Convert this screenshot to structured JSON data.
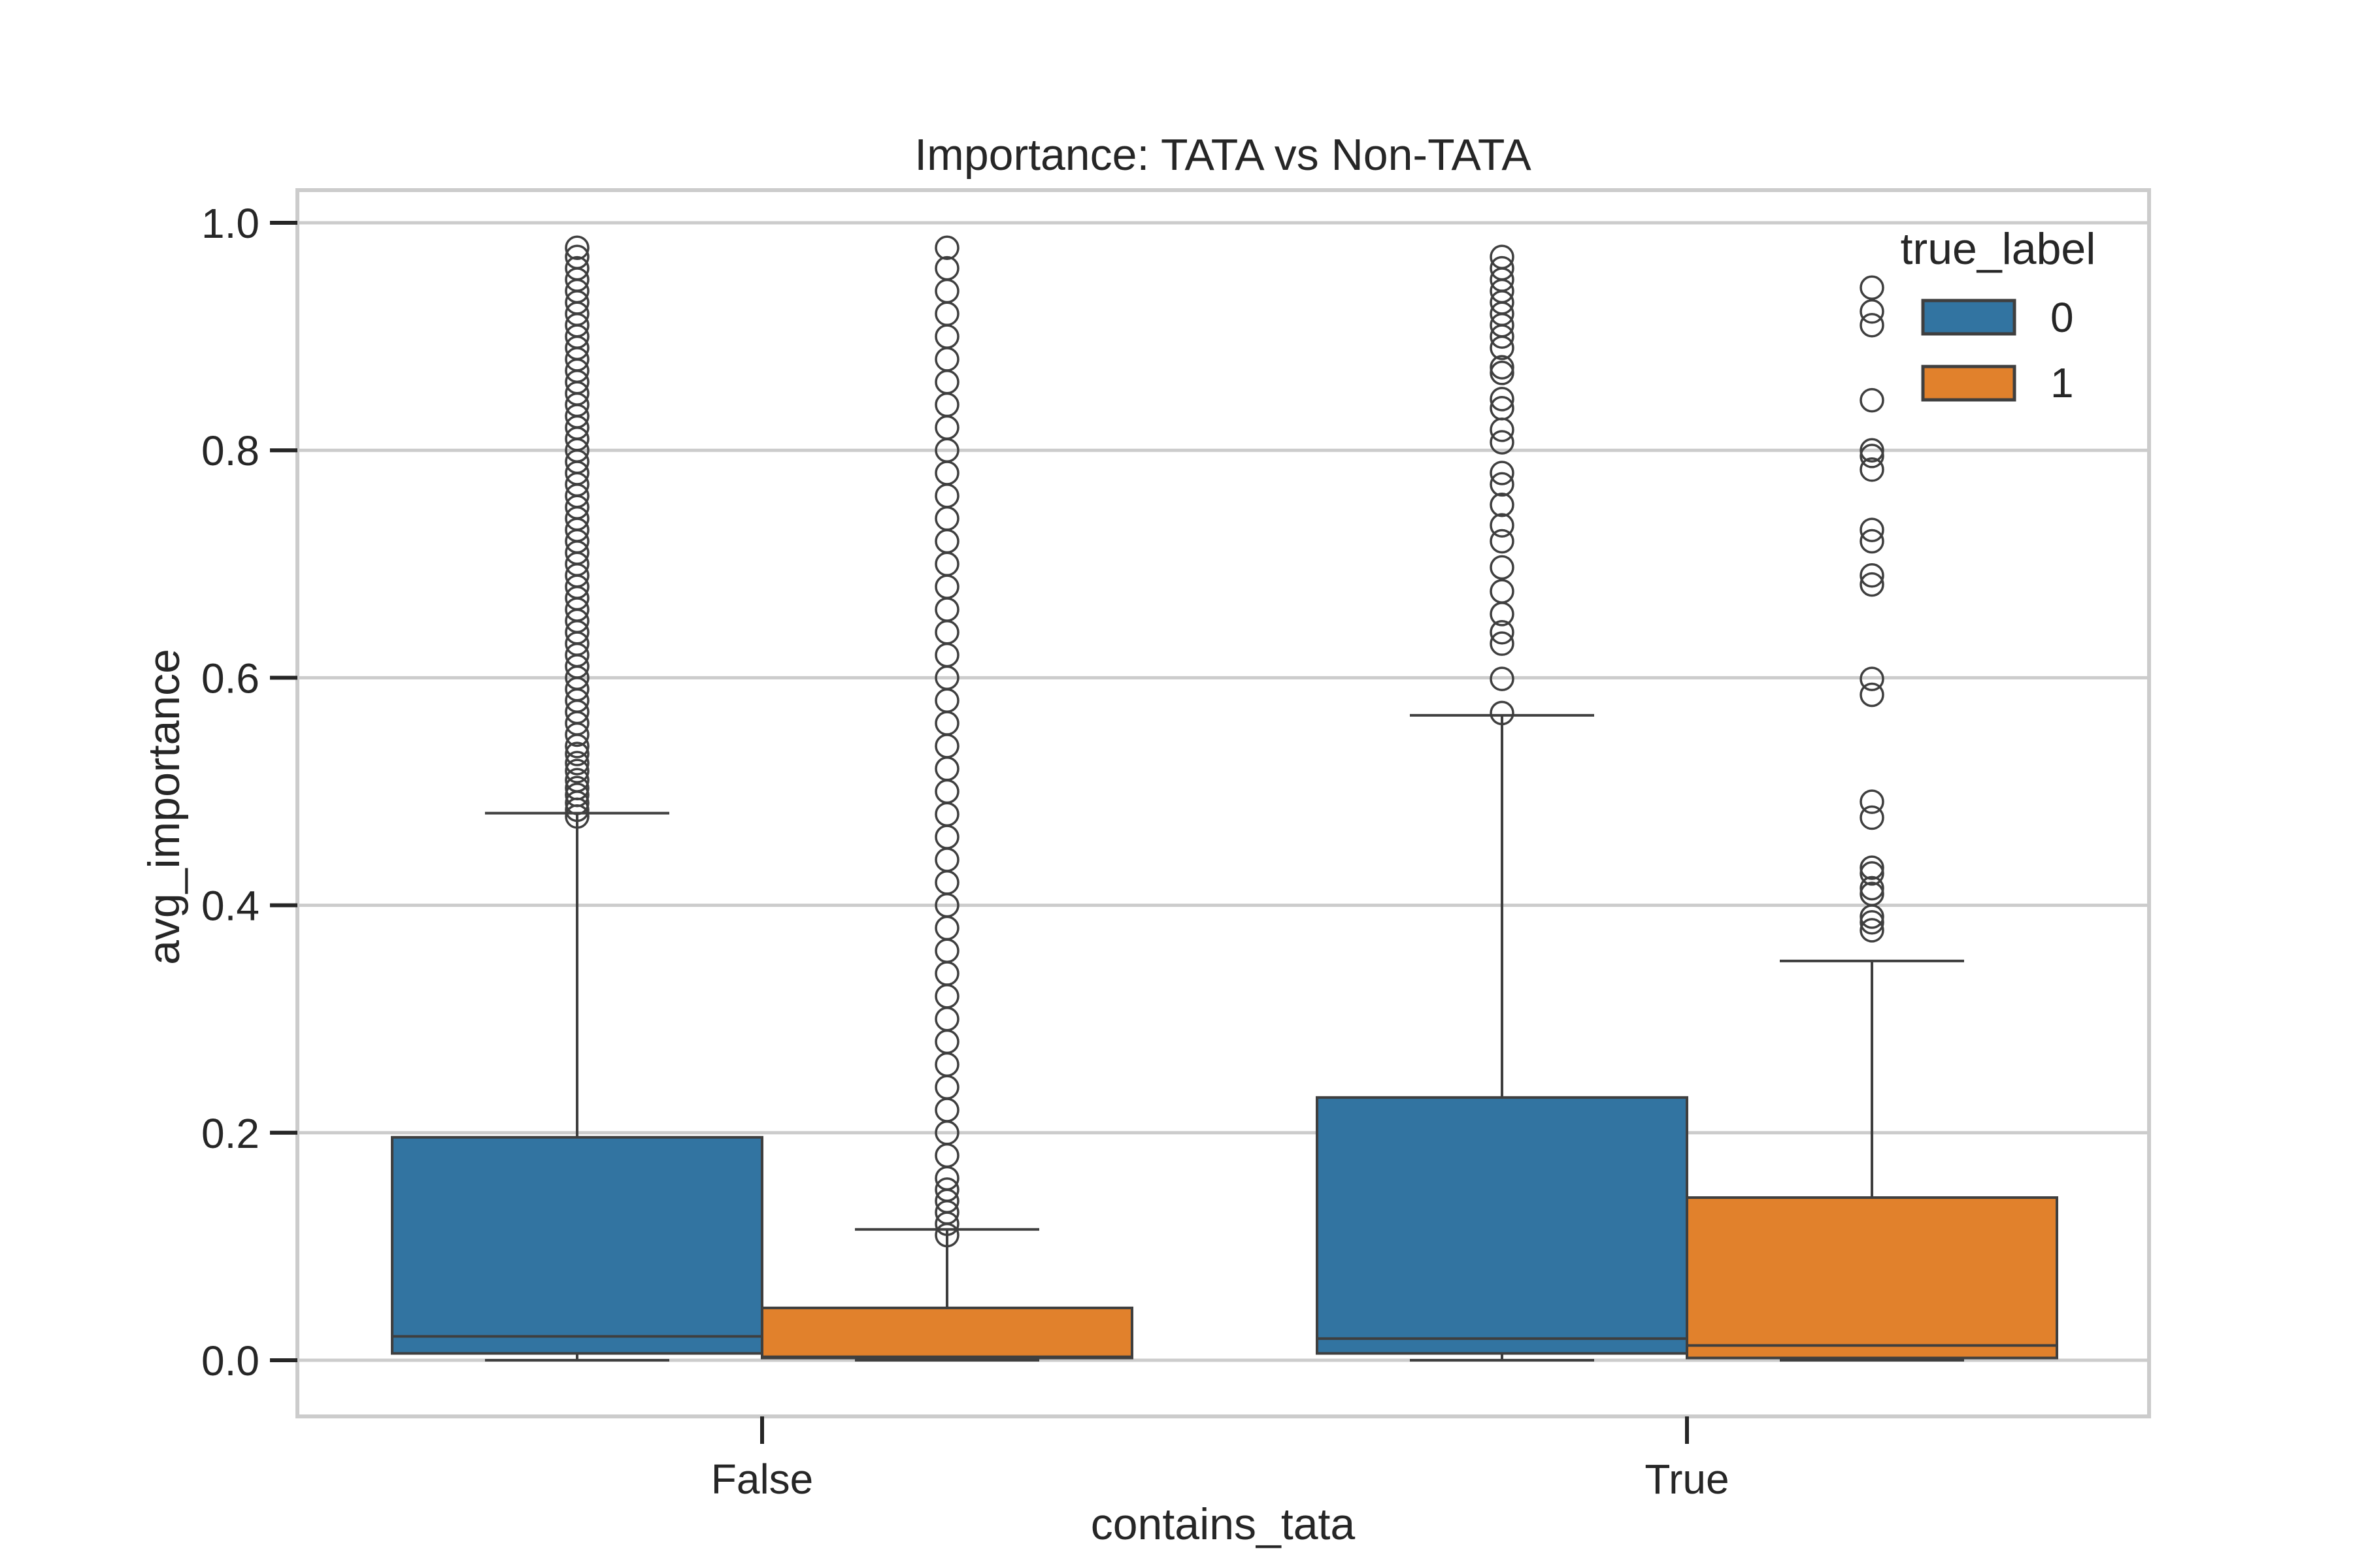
{
  "chart_data": {
    "type": "boxplot",
    "title": "Importance: TATA vs Non-TATA",
    "xlabel": "contains_tata",
    "ylabel": "avg_importance",
    "ylim": [
      -0.05,
      1.03
    ],
    "yticks": [
      0.0,
      0.2,
      0.4,
      0.6,
      0.8,
      1.0
    ],
    "ytick_labels": [
      "0.0",
      "0.2",
      "0.4",
      "0.6",
      "0.8",
      "1.0"
    ],
    "categories": [
      "False",
      "True"
    ],
    "grid": true,
    "legend": {
      "title": "true_label",
      "position": "top-right"
    },
    "series": [
      {
        "name": "0",
        "color": "#3274a1"
      },
      {
        "name": "1",
        "color": "#e1812c"
      }
    ],
    "boxes": [
      {
        "category": "False",
        "series": "0",
        "whisker_low": 0.0,
        "q1": 0.006,
        "median": 0.021,
        "q3": 0.196,
        "whisker_high": 0.481,
        "outliers": [
          0.478,
          0.484,
          0.49,
          0.497,
          0.503,
          0.51,
          0.518,
          0.525,
          0.533,
          0.54,
          0.55,
          0.56,
          0.57,
          0.58,
          0.59,
          0.6,
          0.61,
          0.62,
          0.63,
          0.64,
          0.65,
          0.66,
          0.67,
          0.68,
          0.69,
          0.7,
          0.71,
          0.72,
          0.73,
          0.74,
          0.75,
          0.76,
          0.77,
          0.78,
          0.79,
          0.8,
          0.81,
          0.82,
          0.83,
          0.84,
          0.85,
          0.86,
          0.87,
          0.88,
          0.89,
          0.9,
          0.91,
          0.92,
          0.93,
          0.94,
          0.95,
          0.96,
          0.97,
          0.978
        ]
      },
      {
        "category": "False",
        "series": "1",
        "whisker_low": 0.0,
        "q1": 0.002,
        "median": 0.003,
        "q3": 0.046,
        "whisker_high": 0.115,
        "outliers": [
          0.11,
          0.12,
          0.13,
          0.14,
          0.15,
          0.16,
          0.18,
          0.2,
          0.22,
          0.24,
          0.26,
          0.28,
          0.3,
          0.32,
          0.34,
          0.36,
          0.38,
          0.4,
          0.42,
          0.44,
          0.46,
          0.48,
          0.5,
          0.52,
          0.54,
          0.56,
          0.58,
          0.6,
          0.62,
          0.64,
          0.66,
          0.68,
          0.7,
          0.72,
          0.74,
          0.76,
          0.78,
          0.8,
          0.82,
          0.84,
          0.86,
          0.88,
          0.9,
          0.92,
          0.94,
          0.96,
          0.978
        ]
      },
      {
        "category": "True",
        "series": "0",
        "whisker_low": 0.0,
        "q1": 0.006,
        "median": 0.019,
        "q3": 0.231,
        "whisker_high": 0.567,
        "outliers": [
          0.569,
          0.599,
          0.63,
          0.64,
          0.656,
          0.676,
          0.697,
          0.72,
          0.734,
          0.752,
          0.77,
          0.78,
          0.807,
          0.818,
          0.837,
          0.845,
          0.868,
          0.873,
          0.89,
          0.9,
          0.91,
          0.92,
          0.93,
          0.94,
          0.95,
          0.96,
          0.97
        ]
      },
      {
        "category": "True",
        "series": "1",
        "whisker_low": 0.0,
        "q1": 0.002,
        "median": 0.013,
        "q3": 0.143,
        "whisker_high": 0.351,
        "outliers": [
          0.378,
          0.385,
          0.39,
          0.41,
          0.415,
          0.428,
          0.433,
          0.477,
          0.491,
          0.585,
          0.599,
          0.682,
          0.69,
          0.72,
          0.73,
          0.783,
          0.795,
          0.8,
          0.844,
          0.91,
          0.922,
          0.943
        ]
      }
    ]
  }
}
